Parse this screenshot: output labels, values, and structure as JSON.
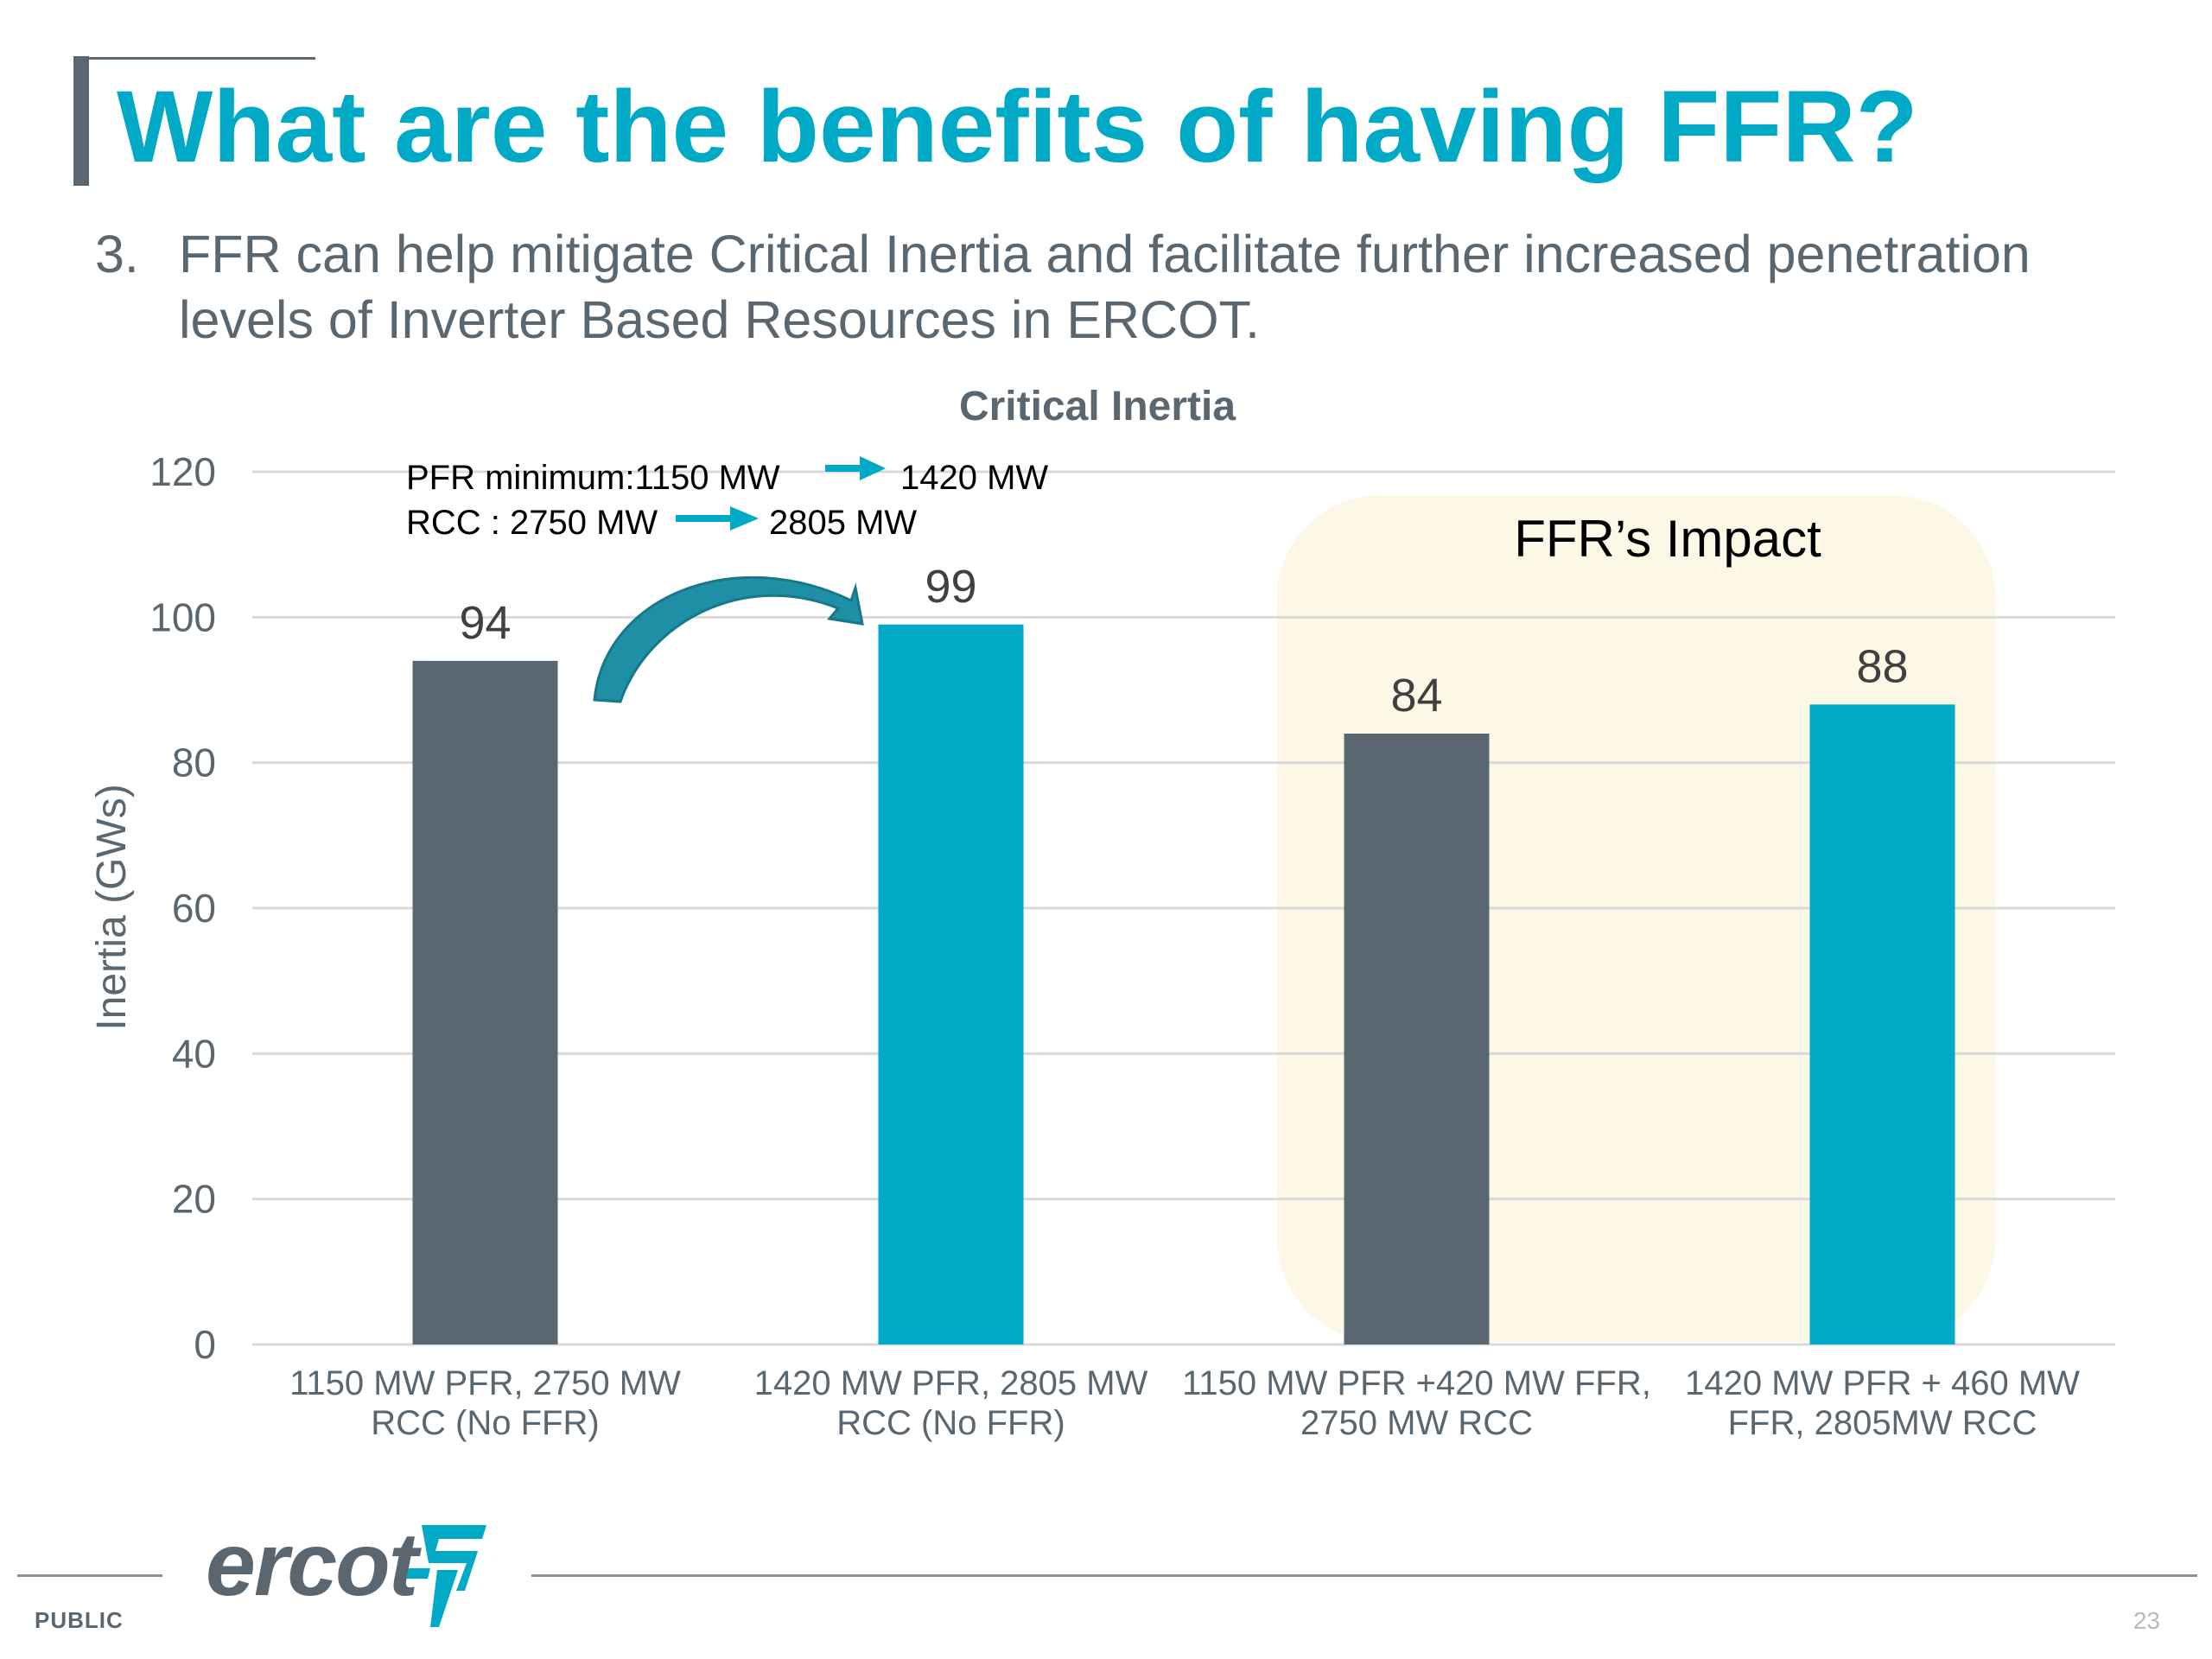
{
  "slide": {
    "title": "What are the benefits of having FFR?",
    "point_number": "3.",
    "point_text": "FFR can help mitigate Critical Inertia and facilitate further increased penetration levels of Inverter Based Resources in ERCOT."
  },
  "chart_data": {
    "type": "bar",
    "title": "Critical Inertia",
    "ylabel": "Inertia (GWs)",
    "xlabel": "",
    "ylim": [
      0,
      120
    ],
    "yticks": [
      0,
      20,
      40,
      60,
      80,
      100,
      120
    ],
    "grid": true,
    "categories": [
      [
        "1150 MW PFR, 2750 MW",
        "RCC (No FFR)"
      ],
      [
        "1420 MW PFR, 2805 MW",
        "RCC (No FFR)"
      ],
      [
        "1150 MW PFR +420 MW FFR,",
        "2750 MW RCC"
      ],
      [
        "1420 MW PFR + 460 MW",
        "FFR, 2805MW RCC"
      ]
    ],
    "values": [
      94,
      99,
      84,
      88
    ],
    "data_labels": [
      "94",
      "99",
      "84",
      "88"
    ],
    "bar_colors": [
      "#5b6770",
      "#00a9c5",
      "#5b6770",
      "#00a9c5"
    ],
    "annotations": {
      "pfr_from": "PFR minimum:1150 MW",
      "pfr_to": "1420 MW",
      "rcc_from": "RCC : 2750 MW",
      "rcc_to": "2805 MW",
      "highlight_label": "FFR’s Impact"
    }
  },
  "colors": {
    "accent": "#00a9c5",
    "slate": "#5b6770",
    "highlight": "#fdf8e6",
    "grid": "#d9d9d9"
  },
  "footer": {
    "logo_text": "ercot",
    "classification": "PUBLIC",
    "page_number": "23"
  }
}
